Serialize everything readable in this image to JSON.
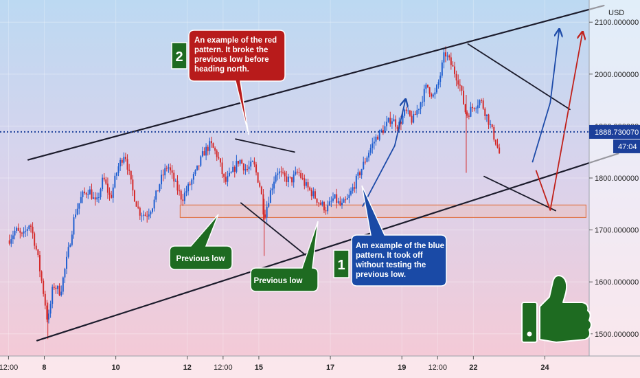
{
  "chart_data": {
    "type": "candlestick",
    "currency": "USD",
    "y_ticks": [
      {
        "value": 2100,
        "label": "2100.000000"
      },
      {
        "value": 2000,
        "label": "2000.000000"
      },
      {
        "value": 1900,
        "label": "1900.000000"
      },
      {
        "value": 1800,
        "label": "1800.000000"
      },
      {
        "value": 1700,
        "label": "1700.000000"
      },
      {
        "value": 1600,
        "label": "1600.000000"
      },
      {
        "value": 1500,
        "label": "1500.000000"
      }
    ],
    "ylim": [
      1460,
      2140
    ],
    "x_ticks": [
      {
        "t": 0,
        "label": "12:00"
      },
      {
        "t": 2,
        "label": "8"
      },
      {
        "t": 6,
        "label": "10"
      },
      {
        "t": 10,
        "label": "12"
      },
      {
        "t": 12,
        "label": "12:00"
      },
      {
        "t": 14,
        "label": "15"
      },
      {
        "t": 18,
        "label": "17"
      },
      {
        "t": 22,
        "label": "19"
      },
      {
        "t": 24,
        "label": "12:00"
      },
      {
        "t": 26,
        "label": "22"
      },
      {
        "t": 30,
        "label": "24"
      }
    ],
    "xlim": [
      -0.4,
      32.4
    ],
    "price_marker": {
      "value": 1888.73,
      "label": "1888.730070",
      "countdown": "47:04"
    },
    "support_zone": [
      1724,
      1748
    ],
    "ohlc_points": [
      [
        0.0,
        1680
      ],
      [
        0.4,
        1700
      ],
      [
        0.8,
        1686
      ],
      [
        1.2,
        1715
      ],
      [
        1.6,
        1655
      ],
      [
        2.0,
        1570
      ],
      [
        2.2,
        1520
      ],
      [
        2.5,
        1595
      ],
      [
        2.9,
        1580
      ],
      [
        3.3,
        1650
      ],
      [
        3.7,
        1730
      ],
      [
        4.1,
        1765
      ],
      [
        4.5,
        1778
      ],
      [
        4.9,
        1748
      ],
      [
        5.3,
        1800
      ],
      [
        5.7,
        1760
      ],
      [
        6.1,
        1818
      ],
      [
        6.5,
        1850
      ],
      [
        6.9,
        1780
      ],
      [
        7.3,
        1735
      ],
      [
        7.7,
        1728
      ],
      [
        8.1,
        1750
      ],
      [
        8.5,
        1795
      ],
      [
        8.9,
        1825
      ],
      [
        9.3,
        1790
      ],
      [
        9.7,
        1760
      ],
      [
        10.1,
        1785
      ],
      [
        10.5,
        1812
      ],
      [
        10.9,
        1848
      ],
      [
        11.3,
        1865
      ],
      [
        11.7,
        1842
      ],
      [
        12.1,
        1790
      ],
      [
        12.5,
        1810
      ],
      [
        12.9,
        1836
      ],
      [
        13.3,
        1815
      ],
      [
        13.7,
        1828
      ],
      [
        14.1,
        1780
      ],
      [
        14.3,
        1725
      ],
      [
        14.6,
        1768
      ],
      [
        15.0,
        1815
      ],
      [
        15.4,
        1800
      ],
      [
        15.8,
        1795
      ],
      [
        16.2,
        1812
      ],
      [
        16.6,
        1786
      ],
      [
        17.0,
        1770
      ],
      [
        17.4,
        1752
      ],
      [
        17.8,
        1740
      ],
      [
        18.2,
        1762
      ],
      [
        18.6,
        1745
      ],
      [
        19.0,
        1760
      ],
      [
        19.4,
        1792
      ],
      [
        19.8,
        1822
      ],
      [
        20.2,
        1855
      ],
      [
        20.6,
        1880
      ],
      [
        21.0,
        1895
      ],
      [
        21.4,
        1915
      ],
      [
        21.8,
        1900
      ],
      [
        22.2,
        1928
      ],
      [
        22.6,
        1910
      ],
      [
        23.0,
        1942
      ],
      [
        23.4,
        1978
      ],
      [
        23.8,
        1955
      ],
      [
        24.1,
        1990
      ],
      [
        24.4,
        2042
      ],
      [
        24.8,
        2015
      ],
      [
        25.2,
        1985
      ],
      [
        25.6,
        1920
      ],
      [
        26.0,
        1938
      ],
      [
        26.4,
        1950
      ],
      [
        26.8,
        1915
      ],
      [
        27.2,
        1875
      ],
      [
        27.5,
        1842
      ]
    ],
    "trend_lines": [
      {
        "name": "channel-upper",
        "color": "#1b1b2b",
        "width": 2.2,
        "p1": [
          1.1,
          1835
        ],
        "p2": [
          33.3,
          2132
        ]
      },
      {
        "name": "channel-lower",
        "color": "#1b1b2b",
        "width": 2.2,
        "p1": [
          1.6,
          1487
        ],
        "p2": [
          34.1,
          1847
        ]
      },
      {
        "name": "red-pattern-top",
        "color": "#1b1b2b",
        "width": 1.8,
        "p1": [
          12.7,
          1875
        ],
        "p2": [
          16.0,
          1850
        ]
      },
      {
        "name": "red-pattern-bottom",
        "color": "#1b1b2b",
        "width": 1.8,
        "p1": [
          13.0,
          1752
        ],
        "p2": [
          16.6,
          1652
        ]
      },
      {
        "name": "right-wedge-top",
        "color": "#1b1b2b",
        "width": 1.8,
        "p1": [
          25.7,
          2058
        ],
        "p2": [
          31.4,
          1932
        ]
      },
      {
        "name": "right-wedge-bottom",
        "color": "#1b1b2b",
        "width": 1.8,
        "p1": [
          26.6,
          1803
        ],
        "p2": [
          30.6,
          1737
        ]
      }
    ],
    "arrows": [
      {
        "name": "blue-arrow-small",
        "color": "#1c4aa8",
        "points": [
          [
            19.8,
            1745
          ],
          [
            21.6,
            1862
          ],
          [
            22.2,
            1950
          ]
        ]
      },
      {
        "name": "blue-arrow-main",
        "color": "#1c4aa8",
        "points": [
          [
            29.3,
            1830
          ],
          [
            30.3,
            1945
          ],
          [
            30.8,
            2085
          ]
        ]
      },
      {
        "name": "red-arrow-main",
        "color": "#c0201a",
        "points": [
          [
            29.5,
            1815
          ],
          [
            30.3,
            1738
          ],
          [
            32.1,
            2080
          ]
        ]
      }
    ],
    "notes": [
      {
        "id": "2",
        "text": [
          "An example of the red",
          "pattern. It broke the",
          "previous low before",
          "heading north."
        ],
        "bg": "#b81b1b"
      },
      {
        "id": "1",
        "text": [
          "Am example of the blue",
          "pattern. It took off",
          "without testing the",
          "previous low."
        ],
        "bg": "#1a4aa6"
      },
      {
        "text": [
          "Previous low"
        ],
        "bg": "#1e6b21"
      },
      {
        "text": [
          "Previous low"
        ],
        "bg": "#1e6b21"
      }
    ],
    "icons": [
      "thumbs-up-icon"
    ]
  }
}
